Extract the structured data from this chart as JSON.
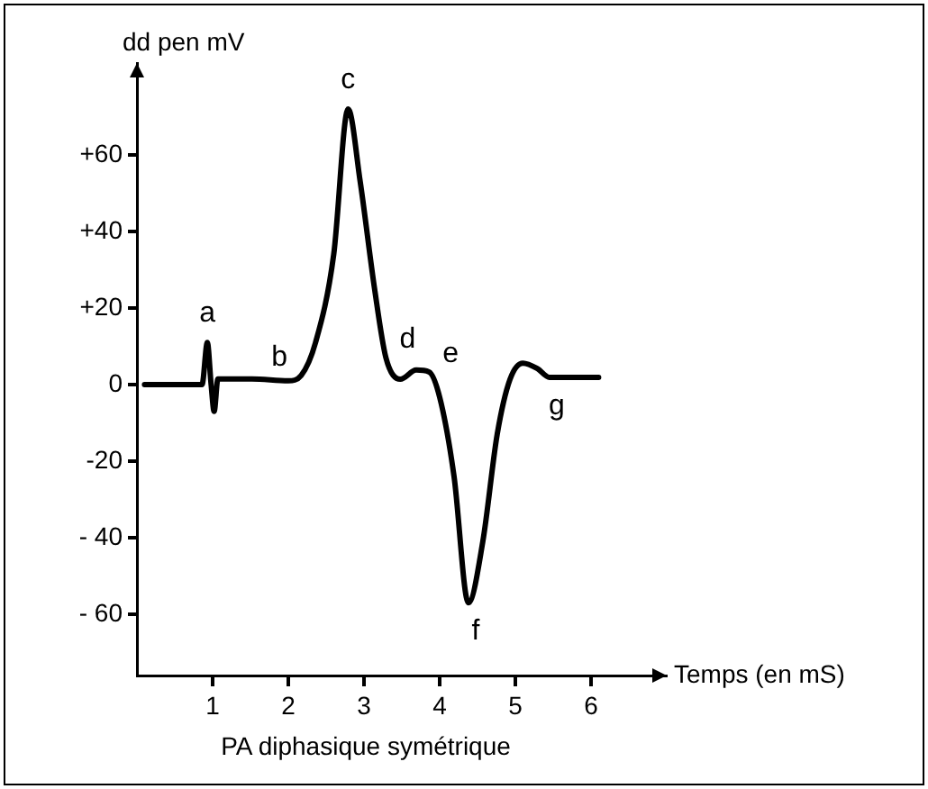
{
  "chart_data": {
    "type": "line",
    "xlabel": "Temps (en mS)",
    "ylabel": "dd pen mV",
    "annotations": [
      {
        "text": "a",
        "x": 0.93,
        "y": 11
      },
      {
        "text": "b",
        "x": 2.17,
        "y": 2.4
      },
      {
        "text": "c",
        "x": 2.79,
        "y": 72
      },
      {
        "text": "d",
        "x": 3.29,
        "y": 7
      },
      {
        "text": "e",
        "x": 3.86,
        "y": 3.3
      },
      {
        "text": "f",
        "x": 4.38,
        "y": -57
      },
      {
        "text": "g",
        "x": 5.45,
        "y": 1.9
      },
      "PA diphasique symétrique"
    ],
    "series": [
      {
        "color": "#000000",
        "x": [
          0.1,
          0.86,
          0.93,
          0.98,
          1.02,
          1.07,
          1.52,
          2.0,
          2.17,
          2.36,
          2.6,
          2.79,
          2.95,
          3.14,
          3.29,
          3.48,
          3.69,
          3.86,
          4.0,
          4.19,
          4.38,
          4.57,
          4.76,
          4.93,
          5.1,
          5.29,
          5.45,
          6.1
        ],
        "values": [
          0,
          0,
          11,
          0,
          -7,
          1.5,
          1.5,
          1,
          2.4,
          11,
          34,
          72,
          53,
          25,
          7,
          1.4,
          3.8,
          3.3,
          -3.3,
          -24,
          -57,
          -41,
          -13,
          1.4,
          5.6,
          4.2,
          1.9,
          1.9
        ]
      }
    ],
    "xlim": [
      0,
      7
    ],
    "xticks": [
      1,
      2,
      3,
      4,
      5,
      6
    ],
    "ylim": [
      -76,
      84
    ],
    "yticks": [
      {
        "value": -60,
        "label": "- 60"
      },
      {
        "value": -40,
        "label": "- 40"
      },
      -20,
      0,
      {
        "value": 20,
        "label": "+20"
      },
      {
        "value": 40,
        "label": "+40"
      },
      {
        "value": 60,
        "label": "+60"
      }
    ],
    "grid": false,
    "legend": false,
    "marker": "none",
    "line_style": "solid"
  }
}
